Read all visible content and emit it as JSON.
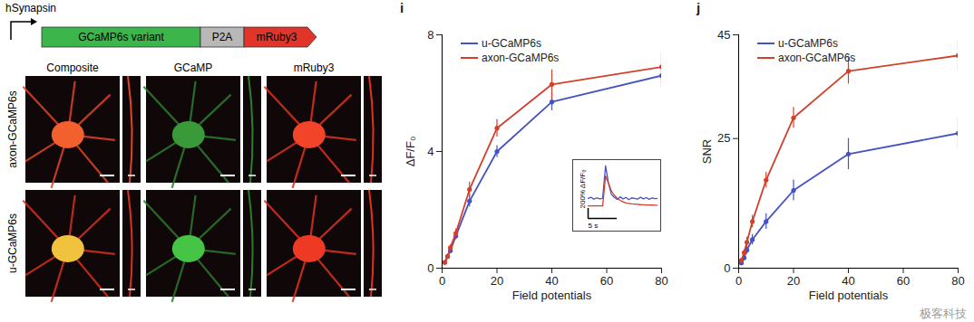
{
  "figure": {
    "construct": {
      "promoter": "hSynapsin",
      "parts": [
        "GCaMP6s variant",
        "P2A",
        "mRuby3"
      ]
    },
    "images": {
      "columns": [
        "Composite",
        "GCaMP",
        "mRuby3"
      ],
      "rows": [
        "axon-GCaMP6s",
        "u-GCaMP6s"
      ]
    },
    "watermark": "极客科技"
  },
  "chart_data": [
    {
      "type": "line",
      "panel_label": "i",
      "x_label": "Field potentials",
      "y_label": "ΔF/F₀",
      "x": [
        1,
        2,
        3,
        5,
        10,
        20,
        40,
        80
      ],
      "xlim": [
        0,
        80
      ],
      "xticks": [
        0,
        20,
        40,
        60,
        80
      ],
      "ylim": [
        0,
        8
      ],
      "yticks": [
        0,
        4,
        8
      ],
      "legend": "top-left",
      "series": [
        {
          "name": "u-GCaMP6s",
          "color": "#4452c4",
          "marker": "circle",
          "line_style": "solid",
          "values": [
            0.2,
            0.4,
            0.6,
            1.1,
            2.3,
            4.0,
            5.7,
            6.6
          ],
          "errors": [
            0.05,
            0.08,
            0.1,
            0.12,
            0.2,
            0.2,
            0.3,
            0.4
          ]
        },
        {
          "name": "axon-GCaMP6s",
          "color": "#d2402c",
          "marker": "circle",
          "line_style": "solid",
          "values": [
            0.2,
            0.4,
            0.7,
            1.2,
            2.7,
            4.8,
            6.3,
            6.9
          ],
          "errors": [
            0.05,
            0.08,
            0.1,
            0.15,
            0.25,
            0.3,
            0.5,
            0.5
          ]
        }
      ],
      "inset": {
        "type": "line",
        "tick_labels": false,
        "x": [
          0,
          0.5,
          1,
          1.5,
          2,
          2.5,
          3,
          3.5,
          4,
          4.5,
          5,
          5.5,
          6,
          6.5,
          7,
          7.5,
          8,
          8.5,
          9,
          9.5,
          10,
          10.5,
          11,
          11.5,
          12
        ],
        "xlim": [
          0,
          12
        ],
        "ylim": [
          -400,
          700
        ],
        "series": [
          {
            "name": "u-GCaMP6s",
            "color": "#4452c4",
            "values": [
              0,
              20,
              -15,
              10,
              -10,
              5,
              650,
              300,
              80,
              20,
              -20,
              30,
              -10,
              20,
              -25,
              10,
              0,
              -15,
              25,
              -10,
              15,
              -20,
              10,
              -5,
              0
            ]
          },
          {
            "name": "axon-GCaMP6s",
            "color": "#d2402c",
            "values": [
              -150,
              -150,
              -150,
              -150,
              -150,
              -150,
              450,
              300,
              150,
              60,
              0,
              -40,
              -70,
              -90,
              -100,
              -110,
              -115,
              -120,
              -125,
              -128,
              -130,
              -132,
              -134,
              -135,
              -136
            ]
          }
        ],
        "scale_bar": {
          "y": 200,
          "y_label": "200% ΔF/F₀",
          "x": 5,
          "x_label": "5 s"
        }
      }
    },
    {
      "type": "line",
      "panel_label": "j",
      "x_label": "Field potentials",
      "y_label": "SNR",
      "x": [
        1,
        2,
        3,
        5,
        10,
        20,
        40,
        80
      ],
      "xlim": [
        0,
        80
      ],
      "xticks": [
        0,
        20,
        40,
        60,
        80
      ],
      "ylim": [
        0,
        45
      ],
      "yticks": [
        0,
        25,
        45
      ],
      "legend": "top-left",
      "series": [
        {
          "name": "u-GCaMP6s",
          "color": "#4452c4",
          "marker": "circle",
          "line_style": "solid",
          "values": [
            1,
            2,
            3.5,
            5.5,
            9,
            15,
            22,
            26
          ],
          "errors": [
            0.3,
            0.5,
            0.8,
            1,
            1.5,
            2,
            3,
            3
          ]
        },
        {
          "name": "axon-GCaMP6s",
          "color": "#d2402c",
          "marker": "circle",
          "line_style": "solid",
          "values": [
            1.5,
            3,
            5,
            9,
            17,
            29,
            38,
            41
          ],
          "errors": [
            0.4,
            0.6,
            1,
            1.2,
            1.5,
            2,
            2.5,
            3
          ]
        }
      ]
    }
  ]
}
